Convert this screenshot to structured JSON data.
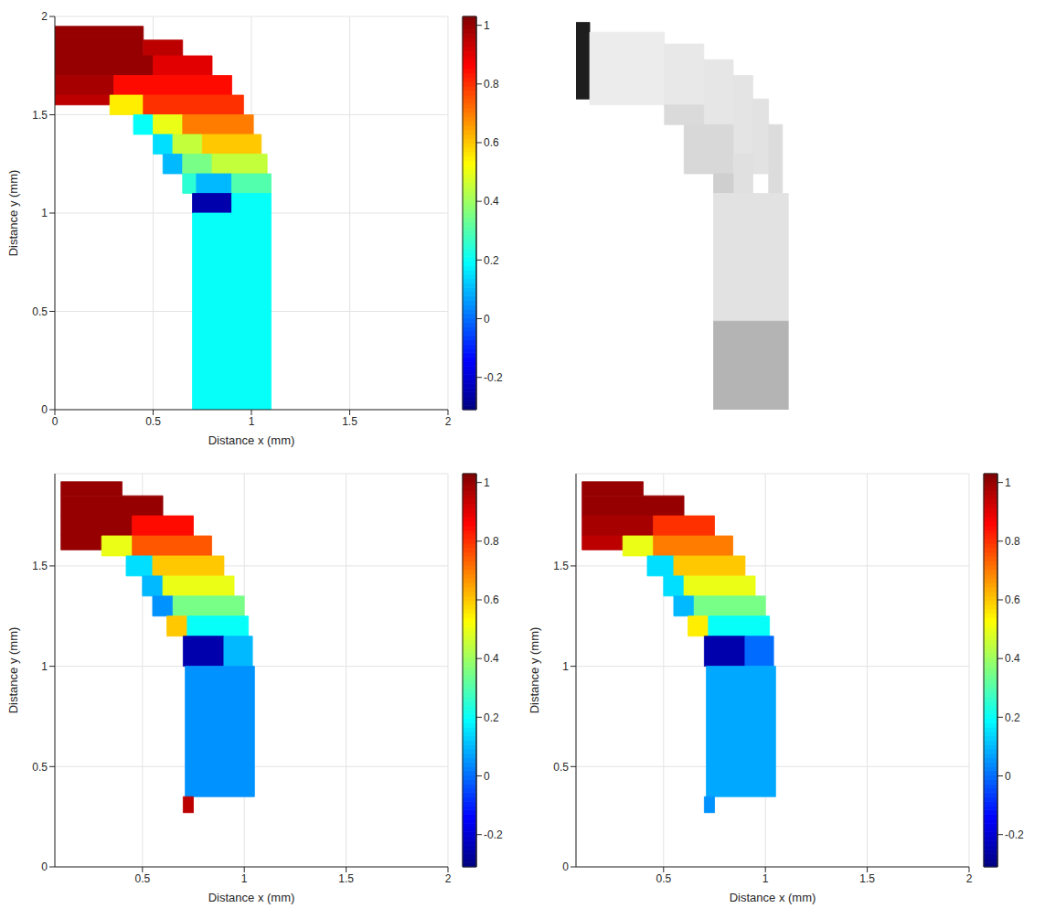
{
  "chart_data": [
    {
      "type": "heatmap",
      "xlabel": "Distance x (mm)",
      "ylabel": "Distance y (mm)",
      "xlim": [
        0,
        2
      ],
      "ylim": [
        0,
        2
      ],
      "xticks": [
        0,
        0.5,
        1,
        1.5,
        2
      ],
      "yticks": [
        0,
        0.5,
        1,
        1.5,
        2
      ],
      "grid": true,
      "colorbar": {
        "range": [
          -0.31,
          1.03
        ],
        "ticks": [
          -0.2,
          0,
          0.2,
          0.4,
          0.6,
          0.8,
          1
        ]
      },
      "regions": [
        {
          "x": [
            0,
            0.45
          ],
          "y": [
            1.9,
            1.95
          ],
          "value": 1.0
        },
        {
          "x": [
            0,
            0.45
          ],
          "y": [
            1.8,
            1.9
          ],
          "value": 1.0
        },
        {
          "x": [
            0.45,
            0.65
          ],
          "y": [
            1.8,
            1.88
          ],
          "value": 0.95
        },
        {
          "x": [
            0,
            0.5
          ],
          "y": [
            1.7,
            1.8
          ],
          "value": 1.0
        },
        {
          "x": [
            0.5,
            0.8
          ],
          "y": [
            1.7,
            1.8
          ],
          "value": 0.9
        },
        {
          "x": [
            0,
            0.3
          ],
          "y": [
            1.6,
            1.7
          ],
          "value": 0.98
        },
        {
          "x": [
            0.3,
            0.9
          ],
          "y": [
            1.6,
            1.7
          ],
          "value": 0.85
        },
        {
          "x": [
            0,
            0.28
          ],
          "y": [
            1.55,
            1.6
          ],
          "value": 0.95
        },
        {
          "x": [
            0.28,
            0.45
          ],
          "y": [
            1.5,
            1.6
          ],
          "value": 0.55
        },
        {
          "x": [
            0.45,
            0.96
          ],
          "y": [
            1.5,
            1.6
          ],
          "value": 0.8
        },
        {
          "x": [
            0.4,
            0.5
          ],
          "y": [
            1.4,
            1.5
          ],
          "value": 0.2
        },
        {
          "x": [
            0.5,
            0.65
          ],
          "y": [
            1.4,
            1.5
          ],
          "value": 0.5
        },
        {
          "x": [
            0.65,
            1.01
          ],
          "y": [
            1.4,
            1.5
          ],
          "value": 0.7
        },
        {
          "x": [
            0.5,
            0.6
          ],
          "y": [
            1.3,
            1.4
          ],
          "value": 0.15
        },
        {
          "x": [
            0.6,
            0.75
          ],
          "y": [
            1.3,
            1.4
          ],
          "value": 0.45
        },
        {
          "x": [
            0.75,
            1.05
          ],
          "y": [
            1.3,
            1.4
          ],
          "value": 0.6
        },
        {
          "x": [
            0.55,
            0.65
          ],
          "y": [
            1.2,
            1.3
          ],
          "value": 0.1
        },
        {
          "x": [
            0.65,
            0.8
          ],
          "y": [
            1.2,
            1.3
          ],
          "value": 0.35
        },
        {
          "x": [
            0.8,
            1.08
          ],
          "y": [
            1.2,
            1.3
          ],
          "value": 0.45
        },
        {
          "x": [
            0.65,
            0.72
          ],
          "y": [
            1.1,
            1.2
          ],
          "value": 0.25
        },
        {
          "x": [
            0.72,
            0.9
          ],
          "y": [
            1.1,
            1.2
          ],
          "value": 0.1
        },
        {
          "x": [
            0.9,
            1.1
          ],
          "y": [
            1.1,
            1.2
          ],
          "value": 0.3
        },
        {
          "x": [
            0.7,
            0.9
          ],
          "y": [
            1.0,
            1.1
          ],
          "value": -0.25
        },
        {
          "x": [
            0.9,
            1.1
          ],
          "y": [
            1.0,
            1.1
          ],
          "value": 0.2
        },
        {
          "x": [
            0.7,
            1.1
          ],
          "y": [
            0,
            1.0
          ],
          "value": 0.2
        }
      ]
    },
    {
      "type": "image",
      "tick_labels": false,
      "xlim": [
        0,
        2
      ],
      "ylim": [
        0,
        2
      ],
      "regions": [
        {
          "x": [
            0,
            0.07
          ],
          "y": [
            1.58,
            1.97
          ],
          "color": "#1e1e1e"
        },
        {
          "x": [
            0.07,
            0.45
          ],
          "y": [
            1.55,
            1.92
          ],
          "color": "#ececec"
        },
        {
          "x": [
            0.45,
            0.65
          ],
          "y": [
            1.55,
            1.86
          ],
          "color": "#e8e8e8"
        },
        {
          "x": [
            0.65,
            0.8
          ],
          "y": [
            1.45,
            1.78
          ],
          "color": "#e6e6e6"
        },
        {
          "x": [
            0.8,
            0.9
          ],
          "y": [
            1.3,
            1.7
          ],
          "color": "#e4e4e4"
        },
        {
          "x": [
            0.45,
            0.65
          ],
          "y": [
            1.45,
            1.55
          ],
          "color": "#dadada"
        },
        {
          "x": [
            0.55,
            0.8
          ],
          "y": [
            1.2,
            1.45
          ],
          "color": "#d8d8d8"
        },
        {
          "x": [
            0.9,
            0.98
          ],
          "y": [
            1.2,
            1.58
          ],
          "color": "#e2e2e2"
        },
        {
          "x": [
            0.98,
            1.05
          ],
          "y": [
            1.1,
            1.45
          ],
          "color": "#dcdcdc"
        },
        {
          "x": [
            0.8,
            0.9
          ],
          "y": [
            1.1,
            1.3
          ],
          "color": "#e0e0e0"
        },
        {
          "x": [
            0.7,
            0.8
          ],
          "y": [
            1.1,
            1.2
          ],
          "color": "#cfcfcf"
        },
        {
          "x": [
            0.7,
            1.08
          ],
          "y": [
            0.45,
            1.1
          ],
          "color": "#e2e2e2"
        },
        {
          "x": [
            0.7,
            1.08
          ],
          "y": [
            0,
            0.45
          ],
          "color": "#b4b4b4"
        }
      ]
    },
    {
      "type": "heatmap",
      "xlabel": "Distance x (mm)",
      "ylabel": "Distance y (mm)",
      "xlim": [
        0.07,
        2
      ],
      "ylim": [
        0,
        1.96
      ],
      "xticks": [
        0.5,
        1,
        1.5,
        2
      ],
      "yticks": [
        0,
        0.5,
        1,
        1.5
      ],
      "grid": true,
      "colorbar": {
        "range": [
          -0.31,
          1.03
        ],
        "ticks": [
          -0.2,
          0,
          0.2,
          0.4,
          0.6,
          0.8,
          1
        ]
      },
      "regions": [
        {
          "x": [
            0.1,
            0.4
          ],
          "y": [
            1.85,
            1.92
          ],
          "value": 1.0
        },
        {
          "x": [
            0.1,
            0.6
          ],
          "y": [
            1.75,
            1.85
          ],
          "value": 1.0
        },
        {
          "x": [
            0.1,
            0.45
          ],
          "y": [
            1.65,
            1.75
          ],
          "value": 1.0
        },
        {
          "x": [
            0.45,
            0.75
          ],
          "y": [
            1.65,
            1.75
          ],
          "value": 0.85
        },
        {
          "x": [
            0.1,
            0.3
          ],
          "y": [
            1.58,
            1.65
          ],
          "value": 1.0
        },
        {
          "x": [
            0.3,
            0.45
          ],
          "y": [
            1.55,
            1.65
          ],
          "value": 0.5
        },
        {
          "x": [
            0.45,
            0.84
          ],
          "y": [
            1.55,
            1.65
          ],
          "value": 0.75
        },
        {
          "x": [
            0.42,
            0.55
          ],
          "y": [
            1.45,
            1.55
          ],
          "value": 0.15
        },
        {
          "x": [
            0.55,
            0.9
          ],
          "y": [
            1.45,
            1.55
          ],
          "value": 0.6
        },
        {
          "x": [
            0.5,
            0.6
          ],
          "y": [
            1.35,
            1.45
          ],
          "value": 0.1
        },
        {
          "x": [
            0.6,
            0.95
          ],
          "y": [
            1.35,
            1.45
          ],
          "value": 0.5
        },
        {
          "x": [
            0.55,
            0.65
          ],
          "y": [
            1.25,
            1.35
          ],
          "value": 0.05
        },
        {
          "x": [
            0.65,
            1.0
          ],
          "y": [
            1.25,
            1.35
          ],
          "value": 0.35
        },
        {
          "x": [
            0.62,
            0.72
          ],
          "y": [
            1.15,
            1.25
          ],
          "value": 0.6
        },
        {
          "x": [
            0.72,
            1.02
          ],
          "y": [
            1.15,
            1.25
          ],
          "value": 0.2
        },
        {
          "x": [
            0.7,
            0.9
          ],
          "y": [
            1.0,
            1.15
          ],
          "value": -0.25
        },
        {
          "x": [
            0.9,
            1.04
          ],
          "y": [
            1.0,
            1.15
          ],
          "value": 0.1
        },
        {
          "x": [
            0.71,
            1.05
          ],
          "y": [
            0.35,
            1.0
          ],
          "value": 0.05
        },
        {
          "x": [
            0.7,
            0.75
          ],
          "y": [
            0.27,
            0.35
          ],
          "value": 0.95
        }
      ]
    },
    {
      "type": "heatmap",
      "xlabel": "Distance x (mm)",
      "ylabel": "Distance y (mm)",
      "xlim": [
        0.07,
        2
      ],
      "ylim": [
        0,
        1.96
      ],
      "xticks": [
        0.5,
        1,
        1.5,
        2
      ],
      "yticks": [
        0,
        0.5,
        1,
        1.5
      ],
      "grid": true,
      "colorbar": {
        "range": [
          -0.31,
          1.03
        ],
        "ticks": [
          -0.2,
          0,
          0.2,
          0.4,
          0.6,
          0.8,
          1
        ]
      },
      "regions": [
        {
          "x": [
            0.1,
            0.4
          ],
          "y": [
            1.85,
            1.92
          ],
          "value": 1.0
        },
        {
          "x": [
            0.1,
            0.6
          ],
          "y": [
            1.75,
            1.85
          ],
          "value": 1.0
        },
        {
          "x": [
            0.1,
            0.45
          ],
          "y": [
            1.65,
            1.75
          ],
          "value": 0.98
        },
        {
          "x": [
            0.45,
            0.75
          ],
          "y": [
            1.65,
            1.75
          ],
          "value": 0.8
        },
        {
          "x": [
            0.1,
            0.3
          ],
          "y": [
            1.58,
            1.65
          ],
          "value": 0.95
        },
        {
          "x": [
            0.3,
            0.45
          ],
          "y": [
            1.55,
            1.65
          ],
          "value": 0.5
        },
        {
          "x": [
            0.45,
            0.84
          ],
          "y": [
            1.55,
            1.65
          ],
          "value": 0.7
        },
        {
          "x": [
            0.42,
            0.55
          ],
          "y": [
            1.45,
            1.55
          ],
          "value": 0.15
        },
        {
          "x": [
            0.55,
            0.9
          ],
          "y": [
            1.45,
            1.55
          ],
          "value": 0.6
        },
        {
          "x": [
            0.5,
            0.6
          ],
          "y": [
            1.35,
            1.45
          ],
          "value": 0.15
        },
        {
          "x": [
            0.6,
            0.95
          ],
          "y": [
            1.35,
            1.45
          ],
          "value": 0.5
        },
        {
          "x": [
            0.55,
            0.65
          ],
          "y": [
            1.25,
            1.35
          ],
          "value": 0.1
        },
        {
          "x": [
            0.65,
            1.0
          ],
          "y": [
            1.25,
            1.35
          ],
          "value": 0.35
        },
        {
          "x": [
            0.62,
            0.72
          ],
          "y": [
            1.15,
            1.25
          ],
          "value": 0.55
        },
        {
          "x": [
            0.72,
            1.02
          ],
          "y": [
            1.15,
            1.25
          ],
          "value": 0.2
        },
        {
          "x": [
            0.7,
            0.9
          ],
          "y": [
            1.0,
            1.15
          ],
          "value": -0.25
        },
        {
          "x": [
            0.9,
            1.04
          ],
          "y": [
            1.0,
            1.15
          ],
          "value": 0.0
        },
        {
          "x": [
            0.71,
            1.05
          ],
          "y": [
            0.35,
            1.0
          ],
          "value": 0.08
        },
        {
          "x": [
            0.7,
            0.75
          ],
          "y": [
            0.27,
            0.35
          ],
          "value": 0.05
        }
      ]
    }
  ]
}
